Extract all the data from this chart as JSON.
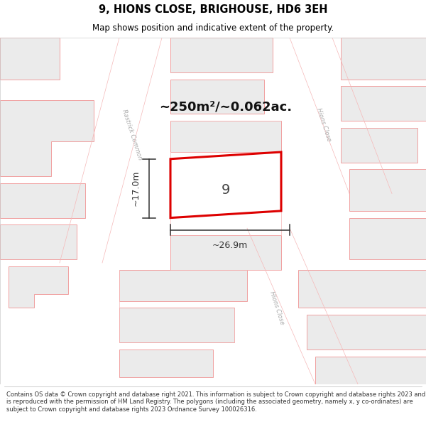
{
  "title": "9, HIONS CLOSE, BRIGHOUSE, HD6 3EH",
  "subtitle": "Map shows position and indicative extent of the property.",
  "footer": "Contains OS data © Crown copyright and database right 2021. This information is subject to Crown copyright and database rights 2023 and is reproduced with the permission of HM Land Registry. The polygons (including the associated geometry, namely x, y co-ordinates) are subject to Crown copyright and database rights 2023 Ordnance Survey 100026316.",
  "area_label": "~250m²/~0.062ac.",
  "plot_number": "9",
  "dim_width": "~26.9m",
  "dim_height": "~17.0m",
  "map_bg": "#ffffff",
  "building_fill": "#ebebeb",
  "building_outline": "#f0a0a0",
  "highlight_outline": "#dd0000",
  "highlight_fill": "#ffffff",
  "dim_color": "#333333",
  "road_label_color": "#aaaaaa",
  "boundary_color": "#f5b8b8",
  "title_color": "#000000",
  "footer_color": "#333333"
}
